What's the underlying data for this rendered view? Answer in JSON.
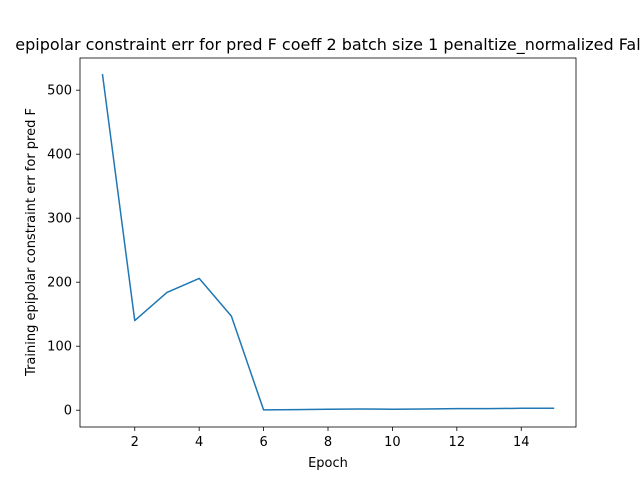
{
  "chart_data": {
    "type": "line",
    "title": "epipolar constraint err for pred F coeff 2 batch size 1 penaltize_normalized Fal",
    "xlabel": "Epoch",
    "ylabel": "Training epipolar constraint err for pred F",
    "xlim": [
      0.3,
      15.7
    ],
    "ylim": [
      -26.2,
      550.3
    ],
    "xticks": [
      2,
      4,
      6,
      8,
      10,
      12,
      14
    ],
    "xtick_labels": [
      "2",
      "4",
      "6",
      "8",
      "10",
      "12",
      "14"
    ],
    "yticks": [
      0,
      100,
      200,
      300,
      400,
      500
    ],
    "ytick_labels": [
      "0",
      "100",
      "200",
      "300",
      "400",
      "500"
    ],
    "grid": false,
    "legend": "none",
    "series": [
      {
        "color": "#1f77b4",
        "x": [
          1,
          2,
          3,
          4,
          5,
          6,
          7,
          8,
          9,
          10,
          11,
          12,
          13,
          14,
          15
        ],
        "y": [
          524,
          140,
          184,
          206,
          147,
          0.5,
          1,
          1.5,
          2,
          1.5,
          2,
          2.5,
          2.5,
          3,
          3
        ]
      }
    ]
  }
}
